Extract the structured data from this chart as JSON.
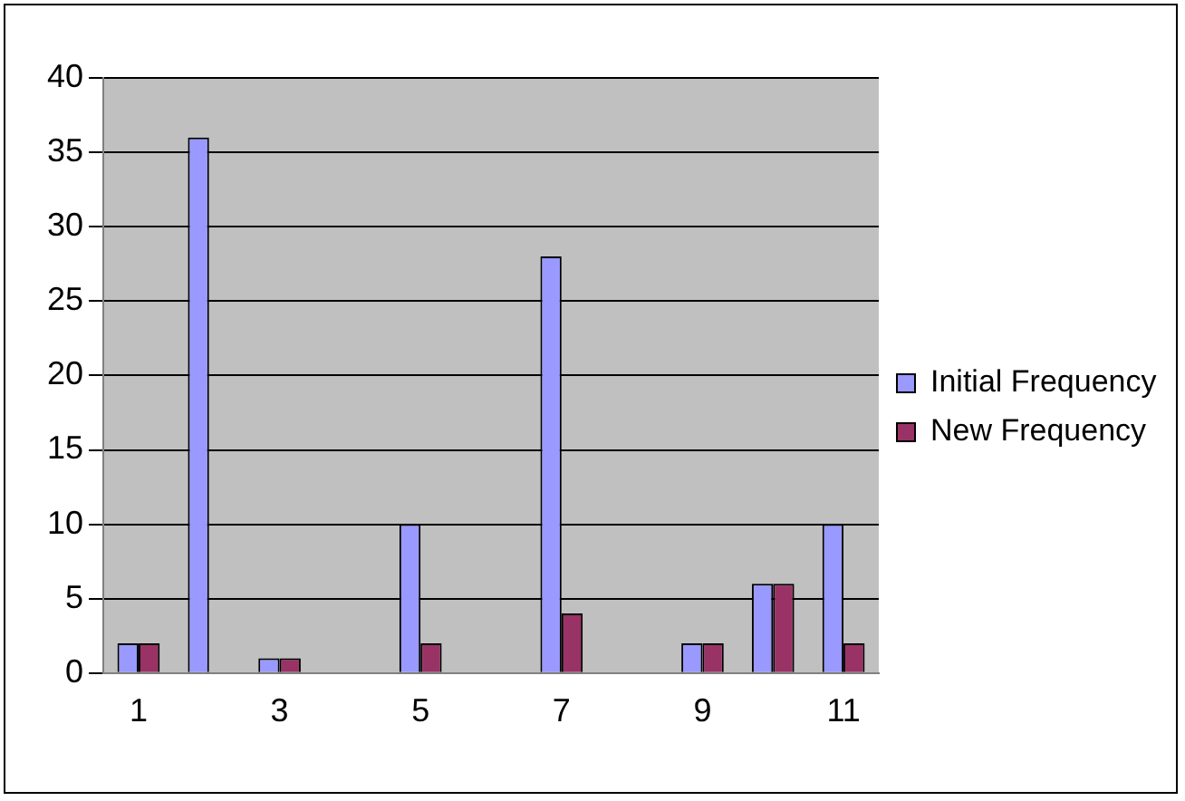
{
  "chart_data": {
    "type": "bar",
    "categories": [
      "1",
      null,
      "3",
      null,
      "5",
      null,
      "7",
      null,
      "9",
      null,
      "11"
    ],
    "series": [
      {
        "name": "Initial Frequency",
        "color": "#9999ff",
        "values": [
          2,
          36,
          1,
          0,
          10,
          0,
          28,
          0,
          2,
          6,
          10
        ]
      },
      {
        "name": "New Frequency",
        "color": "#993366",
        "values": [
          2,
          0,
          1,
          0,
          2,
          0,
          4,
          0,
          2,
          6,
          2
        ]
      }
    ],
    "ylim": [
      0,
      40
    ],
    "yticks": [
      0,
      5,
      10,
      15,
      20,
      25,
      30,
      35,
      40
    ],
    "grid": "y",
    "legend": "right"
  }
}
